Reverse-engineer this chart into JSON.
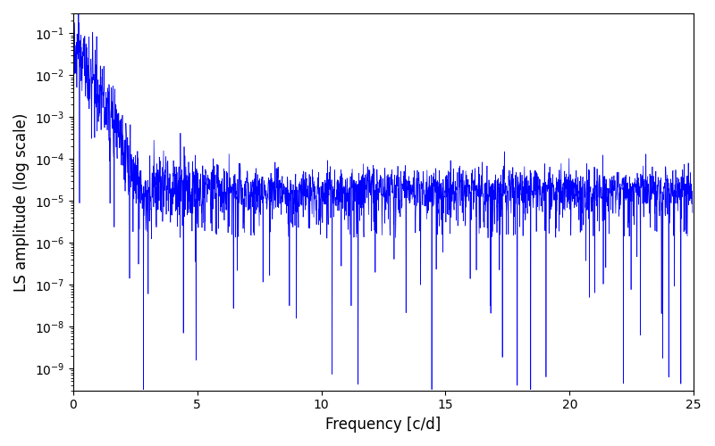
{
  "xlabel": "Frequency [c/d]",
  "ylabel": "LS amplitude (log scale)",
  "line_color": "#0000ff",
  "xlim": [
    0,
    25
  ],
  "ylim": [
    3e-10,
    0.3
  ],
  "n_points": 2500,
  "seed": 7,
  "figsize": [
    8.0,
    5.0
  ],
  "dpi": 100,
  "freq_max": 24.95,
  "background_color": "#ffffff",
  "linewidth": 0.5
}
